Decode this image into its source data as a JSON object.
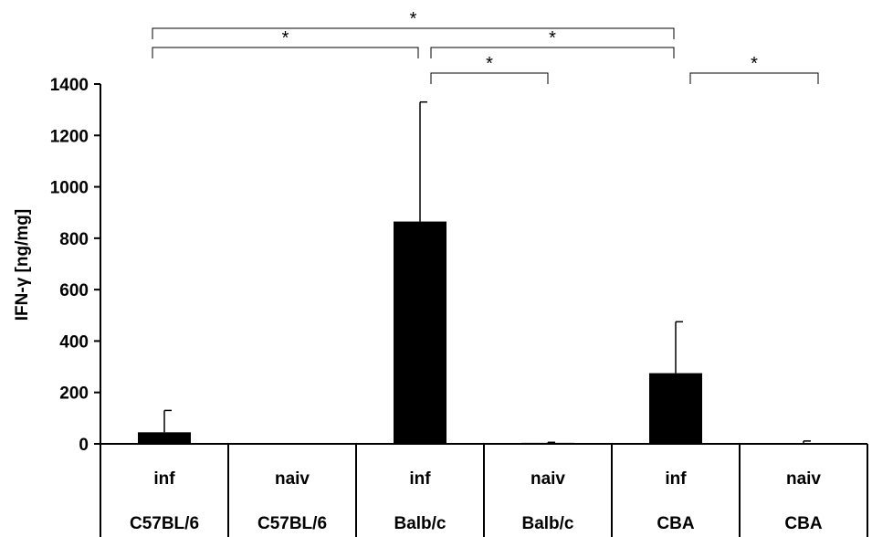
{
  "chart_data": {
    "type": "bar",
    "title": "",
    "ylabel": "IFN-γ [ng/mg]",
    "xlabel": "",
    "ylim": [
      0,
      1400
    ],
    "yticks": [
      0,
      200,
      400,
      600,
      800,
      1000,
      1200,
      1400
    ],
    "grid": false,
    "categories": [
      {
        "row1": "inf",
        "row2": "C57BL/6"
      },
      {
        "row1": "naiv",
        "row2": "C57BL/6"
      },
      {
        "row1": "inf",
        "row2": "Balb/c"
      },
      {
        "row1": "naiv",
        "row2": "Balb/c"
      },
      {
        "row1": "inf",
        "row2": "CBA"
      },
      {
        "row1": "naiv",
        "row2": "CBA"
      }
    ],
    "values": [
      45,
      2,
      865,
      4,
      275,
      3
    ],
    "errors": [
      85,
      0,
      465,
      2,
      200,
      8
    ],
    "bar_color": "#000000",
    "significance": [
      {
        "from": 0,
        "to": 2,
        "label": "*"
      },
      {
        "from": 2,
        "to": 3,
        "label": "*"
      },
      {
        "from": 2,
        "to": 4,
        "label": "*"
      },
      {
        "from": 0,
        "to": 4,
        "label": "*"
      },
      {
        "from": 4,
        "to": 5,
        "label": "*"
      }
    ]
  }
}
